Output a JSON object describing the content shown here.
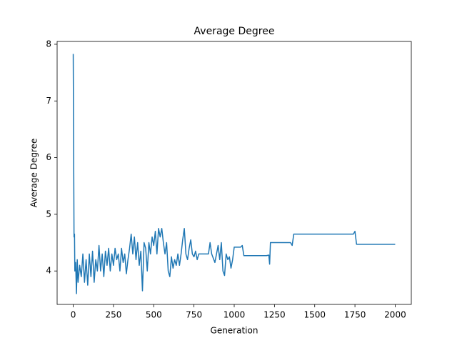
{
  "chart_data": {
    "type": "line",
    "title": "Average Degree",
    "x_label": "Generation",
    "y_label": "Average Degree",
    "x": [
      0,
      2,
      5,
      8,
      10,
      15,
      20,
      25,
      30,
      40,
      50,
      60,
      70,
      80,
      90,
      100,
      110,
      120,
      130,
      140,
      150,
      160,
      170,
      180,
      190,
      200,
      210,
      220,
      230,
      240,
      250,
      260,
      270,
      280,
      290,
      300,
      310,
      320,
      330,
      340,
      350,
      360,
      370,
      380,
      390,
      400,
      410,
      420,
      430,
      440,
      450,
      460,
      470,
      480,
      490,
      500,
      510,
      520,
      530,
      540,
      550,
      560,
      570,
      580,
      590,
      600,
      610,
      620,
      630,
      640,
      650,
      660,
      670,
      680,
      690,
      700,
      710,
      720,
      730,
      740,
      750,
      760,
      770,
      780,
      800,
      820,
      840,
      850,
      860,
      880,
      900,
      910,
      920,
      930,
      940,
      950,
      960,
      970,
      980,
      990,
      1000,
      1040,
      1050,
      1060,
      1120,
      1200,
      1215,
      1220,
      1225,
      1300,
      1350,
      1360,
      1370,
      1500,
      1740,
      1750,
      1760,
      2000
    ],
    "series": [
      {
        "name": "Average Degree",
        "color": "#1f77b4",
        "values": [
          7.83,
          6.5,
          4.6,
          4.65,
          4.0,
          4.15,
          3.6,
          4.2,
          3.8,
          4.1,
          3.9,
          4.3,
          3.8,
          4.2,
          3.75,
          4.3,
          3.9,
          4.35,
          3.8,
          4.2,
          4.0,
          4.45,
          4.0,
          4.3,
          3.9,
          4.35,
          4.1,
          4.4,
          4.0,
          4.3,
          4.1,
          4.4,
          4.2,
          4.3,
          4.0,
          4.4,
          4.15,
          4.3,
          3.95,
          4.2,
          4.4,
          4.65,
          4.3,
          4.6,
          4.2,
          4.5,
          4.1,
          4.35,
          3.65,
          4.5,
          4.4,
          4.0,
          4.5,
          4.3,
          4.6,
          4.45,
          4.7,
          4.3,
          4.75,
          4.6,
          4.75,
          4.5,
          4.3,
          4.5,
          4.0,
          3.9,
          4.25,
          4.05,
          4.2,
          4.1,
          4.3,
          4.1,
          4.3,
          4.55,
          4.75,
          4.3,
          4.2,
          4.4,
          4.55,
          4.3,
          4.25,
          4.35,
          4.2,
          4.3,
          4.3,
          4.3,
          4.3,
          4.5,
          4.3,
          4.15,
          4.45,
          4.2,
          4.5,
          4.0,
          3.92,
          4.3,
          4.2,
          4.25,
          4.05,
          4.2,
          4.42,
          4.42,
          4.45,
          4.27,
          4.27,
          4.27,
          4.28,
          4.12,
          4.5,
          4.5,
          4.5,
          4.45,
          4.65,
          4.65,
          4.65,
          4.7,
          4.47,
          4.47
        ]
      }
    ],
    "xlim": [
      -100,
      2100
    ],
    "ylim": [
      3.41,
      8.05
    ],
    "xticks": [
      0,
      250,
      500,
      750,
      1000,
      1250,
      1500,
      1750,
      2000
    ],
    "yticks": [
      4,
      5,
      6,
      7,
      8
    ]
  }
}
